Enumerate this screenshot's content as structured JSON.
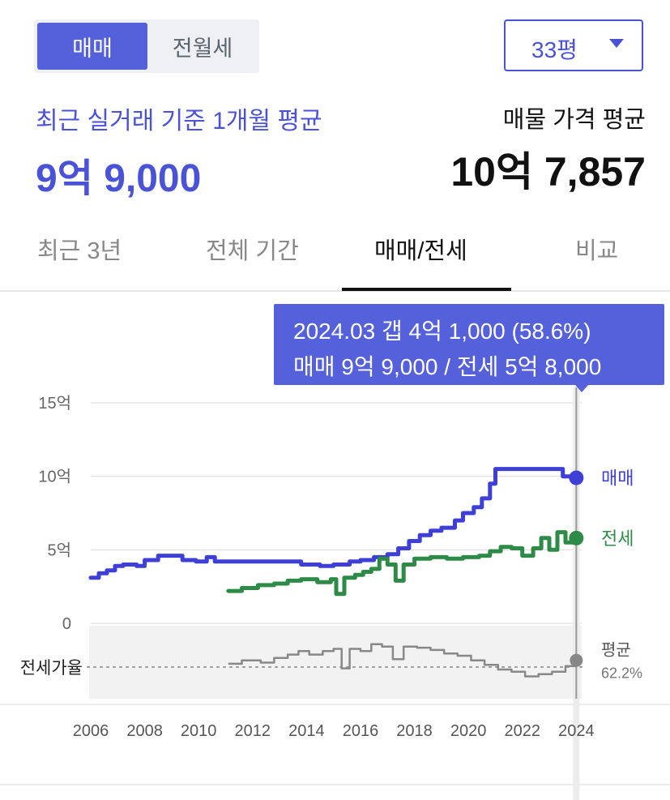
{
  "segment": {
    "active": "매매",
    "inactive": "전월세"
  },
  "area_select": {
    "value": "33평"
  },
  "summary": {
    "recent_label": "최근 실거래 기준 1개월 평균",
    "recent_value": "9억 9,000",
    "listing_label": "매물 가격 평균",
    "listing_value": "10억 7,857"
  },
  "tabs": [
    "최근 3년",
    "전체 기간",
    "매매/전세",
    "비교"
  ],
  "active_tab": "매매/전세",
  "tooltip": {
    "line1": "2024.03  갭 4억 1,000 (58.6%)",
    "line2": "매매 9억 9,000 / 전세 5억 8,000"
  },
  "colors": {
    "sale": "#3d3fd6",
    "jeonse": "#2e8b47",
    "ratio": "#888888",
    "accent": "#5560db"
  },
  "chart_data": {
    "type": "line",
    "x_ticks": [
      "2006",
      "2008",
      "2010",
      "2012",
      "2014",
      "2016",
      "2018",
      "2020",
      "2022",
      "2024"
    ],
    "xlim": [
      2006,
      2024.2
    ],
    "y_ticks": [
      {
        "value": 15,
        "label": "15억"
      },
      {
        "value": 10,
        "label": "10억"
      },
      {
        "value": 5,
        "label": "5억"
      },
      {
        "value": 0,
        "label": "0"
      }
    ],
    "ylim": [
      0,
      15
    ],
    "y_unit": "억",
    "series": [
      {
        "name": "매매",
        "color": "#3d3fd6",
        "end_label": "매매",
        "points": [
          [
            2006.0,
            3.1
          ],
          [
            2006.3,
            3.4
          ],
          [
            2006.6,
            3.6
          ],
          [
            2006.9,
            3.9
          ],
          [
            2007.2,
            4.0
          ],
          [
            2007.7,
            3.9
          ],
          [
            2008.0,
            4.3
          ],
          [
            2008.5,
            4.6
          ],
          [
            2009.0,
            4.6
          ],
          [
            2009.4,
            4.3
          ],
          [
            2009.9,
            4.2
          ],
          [
            2010.3,
            4.5
          ],
          [
            2010.6,
            4.2
          ],
          [
            2011.0,
            4.2
          ],
          [
            2012.0,
            4.2
          ],
          [
            2013.0,
            4.2
          ],
          [
            2013.8,
            4.0
          ],
          [
            2014.5,
            3.9
          ],
          [
            2015.0,
            4.0
          ],
          [
            2015.6,
            4.2
          ],
          [
            2016.0,
            4.3
          ],
          [
            2016.5,
            4.5
          ],
          [
            2017.0,
            4.7
          ],
          [
            2017.4,
            5.1
          ],
          [
            2017.8,
            5.6
          ],
          [
            2018.2,
            6.0
          ],
          [
            2018.6,
            6.3
          ],
          [
            2019.0,
            6.5
          ],
          [
            2019.5,
            7.0
          ],
          [
            2019.8,
            7.5
          ],
          [
            2020.2,
            7.9
          ],
          [
            2020.5,
            8.5
          ],
          [
            2020.8,
            9.5
          ],
          [
            2021.0,
            10.5
          ],
          [
            2021.5,
            10.5
          ],
          [
            2022.0,
            10.5
          ],
          [
            2022.6,
            10.5
          ],
          [
            2023.0,
            10.5
          ],
          [
            2023.5,
            10.0
          ],
          [
            2024.0,
            9.9
          ]
        ]
      },
      {
        "name": "전세",
        "color": "#2e8b47",
        "end_label": "전세",
        "points": [
          [
            2011.1,
            2.2
          ],
          [
            2011.6,
            2.4
          ],
          [
            2012.2,
            2.6
          ],
          [
            2012.8,
            2.7
          ],
          [
            2013.3,
            2.9
          ],
          [
            2013.8,
            3.0
          ],
          [
            2014.4,
            2.8
          ],
          [
            2014.9,
            3.0
          ],
          [
            2015.1,
            2.0
          ],
          [
            2015.4,
            3.1
          ],
          [
            2015.8,
            3.3
          ],
          [
            2016.1,
            3.5
          ],
          [
            2016.4,
            3.7
          ],
          [
            2016.7,
            4.4
          ],
          [
            2017.0,
            4.0
          ],
          [
            2017.3,
            2.9
          ],
          [
            2017.6,
            4.0
          ],
          [
            2018.0,
            4.4
          ],
          [
            2018.6,
            4.5
          ],
          [
            2019.2,
            4.4
          ],
          [
            2019.8,
            4.5
          ],
          [
            2020.4,
            4.6
          ],
          [
            2020.8,
            4.9
          ],
          [
            2021.2,
            5.2
          ],
          [
            2021.6,
            5.1
          ],
          [
            2022.0,
            4.6
          ],
          [
            2022.4,
            5.1
          ],
          [
            2022.7,
            5.8
          ],
          [
            2023.0,
            5.0
          ],
          [
            2023.3,
            6.2
          ],
          [
            2023.6,
            5.5
          ],
          [
            2024.0,
            5.8
          ]
        ]
      }
    ],
    "ratio_series": {
      "name": "전세가율",
      "color": "#888888",
      "end_label": "평균",
      "end_value": "62.2%",
      "points": [
        [
          2011.1,
          59
        ],
        [
          2011.6,
          62
        ],
        [
          2012.3,
          60
        ],
        [
          2012.8,
          64
        ],
        [
          2013.3,
          67
        ],
        [
          2013.7,
          70
        ],
        [
          2014.1,
          67
        ],
        [
          2014.6,
          70
        ],
        [
          2015.0,
          72
        ],
        [
          2015.3,
          55
        ],
        [
          2015.6,
          72
        ],
        [
          2016.0,
          70
        ],
        [
          2016.4,
          76
        ],
        [
          2016.8,
          74
        ],
        [
          2017.2,
          63
        ],
        [
          2017.6,
          74
        ],
        [
          2018.1,
          73
        ],
        [
          2018.6,
          71
        ],
        [
          2019.1,
          68
        ],
        [
          2019.6,
          66
        ],
        [
          2020.1,
          62
        ],
        [
          2020.6,
          58
        ],
        [
          2021.1,
          54
        ],
        [
          2021.6,
          52
        ],
        [
          2022.1,
          48
        ],
        [
          2022.6,
          50
        ],
        [
          2023.1,
          52
        ],
        [
          2023.6,
          57
        ],
        [
          2024.0,
          62
        ]
      ]
    },
    "ratio_label": "전세가율",
    "highlight_x": 2024.0
  }
}
